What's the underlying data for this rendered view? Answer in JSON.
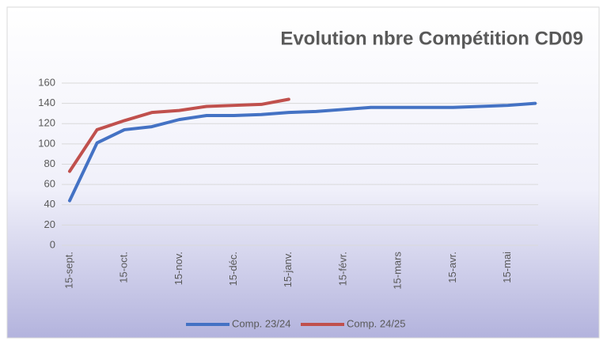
{
  "chart_data": {
    "type": "line",
    "title": "Evolution nbre Compétition CD09",
    "categories": [
      "15-sept.",
      null,
      "15-oct.",
      null,
      "15-nov.",
      null,
      "15-déc.",
      null,
      "15-janv.",
      null,
      "15-févr.",
      null,
      "15-mars",
      null,
      "15-avr.",
      null,
      "15-mai",
      null
    ],
    "series": [
      {
        "name": "Comp. 23/24",
        "color": "#4472c4",
        "values": [
          44,
          101,
          114,
          117,
          124,
          128,
          128,
          129,
          131,
          132,
          134,
          136,
          136,
          136,
          136,
          137,
          138,
          140
        ]
      },
      {
        "name": "Comp. 24/25",
        "color": "#c0504d",
        "values": [
          73,
          114,
          123,
          131,
          133,
          137,
          138,
          139,
          144,
          null,
          null,
          null,
          null,
          null,
          null,
          null,
          null,
          null
        ]
      }
    ],
    "ylim": [
      0,
      160
    ],
    "yticks": [
      0,
      20,
      40,
      60,
      80,
      100,
      120,
      140,
      160
    ],
    "grid": true,
    "legend": "bottom"
  }
}
